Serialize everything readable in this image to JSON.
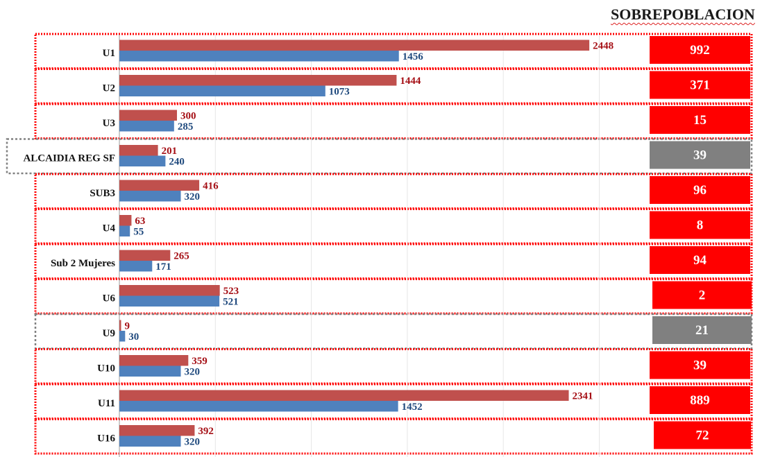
{
  "heading": "SOBREPOBLACION",
  "colors": {
    "series_a": "#c0504d",
    "series_a_label": "#a50f15",
    "series_b": "#4f81bd",
    "series_b_label": "#1f497d",
    "box_over": "#ff0000",
    "box_under": "#808080",
    "frame_over": "#ff0000",
    "frame_under": "#808080"
  },
  "chart_data": {
    "type": "bar",
    "orientation": "horizontal",
    "title": "",
    "xlabel": "",
    "ylabel": "",
    "xlim": [
      0,
      2600
    ],
    "categories": [
      "U1",
      "U2",
      "U3",
      "ALCAIDIA REG SF",
      "SUB3",
      "U4",
      "Sub 2 Mujeres",
      "U6",
      "U9",
      "U10",
      "U11",
      "U16"
    ],
    "series": [
      {
        "values": [
          2448,
          1444,
          300,
          201,
          416,
          63,
          265,
          523,
          9,
          359,
          2341,
          392
        ]
      },
      {
        "values": [
          1456,
          1073,
          285,
          240,
          320,
          55,
          171,
          521,
          30,
          320,
          1452,
          320
        ]
      }
    ],
    "sobrepoblacion": [
      992,
      371,
      15,
      39,
      96,
      8,
      94,
      2,
      21,
      39,
      889,
      72
    ],
    "status": [
      "over",
      "over",
      "over",
      "under",
      "over",
      "over",
      "over",
      "over",
      "under",
      "over",
      "over",
      "over"
    ]
  }
}
